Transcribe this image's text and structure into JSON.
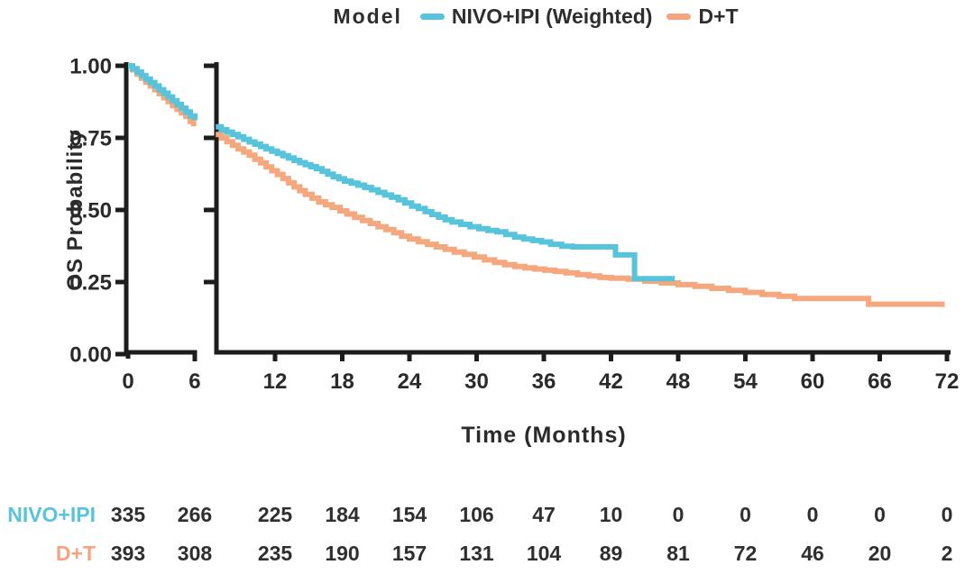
{
  "legend": {
    "title": "Model",
    "items": [
      {
        "label": "NIVO+IPI (Weighted)",
        "color": "#58C4DC"
      },
      {
        "label": "D+T",
        "color": "#F4A47E"
      }
    ]
  },
  "chart_data": {
    "type": "line",
    "subtype": "kaplan-meier-step",
    "title": "",
    "xlabel": "Time (Months)",
    "ylabel": "OS Probability",
    "x_ticks": [
      0,
      6,
      12,
      18,
      24,
      30,
      36,
      42,
      48,
      54,
      60,
      66,
      72
    ],
    "y_tick_labels": [
      "1.00",
      "0.75",
      "0.50",
      "0.25",
      "0.00"
    ],
    "ylim": [
      0,
      1
    ],
    "xlim": [
      0,
      72
    ],
    "axis_break": {
      "after_month": 6,
      "resume_month": 6.7
    },
    "grid": false,
    "legend_position": "top-center",
    "axis_color": "#1d1d1d",
    "series": [
      {
        "name": "NIVO+IPI (Weighted)",
        "color": "#58C4DC",
        "points": [
          [
            0,
            1.0
          ],
          [
            0.4,
            0.99
          ],
          [
            0.8,
            0.978
          ],
          [
            1.2,
            0.966
          ],
          [
            1.6,
            0.954
          ],
          [
            2,
            0.942
          ],
          [
            2.4,
            0.93
          ],
          [
            2.8,
            0.917
          ],
          [
            3.2,
            0.905
          ],
          [
            3.6,
            0.892
          ],
          [
            4,
            0.879
          ],
          [
            4.4,
            0.866
          ],
          [
            4.8,
            0.853
          ],
          [
            5.2,
            0.84
          ],
          [
            5.6,
            0.826
          ],
          [
            6,
            0.812
          ],
          [
            6.7,
            0.788
          ],
          [
            7.2,
            0.778
          ],
          [
            7.7,
            0.77
          ],
          [
            8.2,
            0.762
          ],
          [
            8.7,
            0.754
          ],
          [
            9.2,
            0.745
          ],
          [
            9.7,
            0.736
          ],
          [
            10.2,
            0.728
          ],
          [
            10.7,
            0.72
          ],
          [
            11.2,
            0.712
          ],
          [
            11.7,
            0.704
          ],
          [
            12.2,
            0.696
          ],
          [
            12.7,
            0.688
          ],
          [
            13.2,
            0.68
          ],
          [
            13.7,
            0.672
          ],
          [
            14.2,
            0.664
          ],
          [
            14.7,
            0.657
          ],
          [
            15.2,
            0.65
          ],
          [
            15.7,
            0.643
          ],
          [
            16.2,
            0.634
          ],
          [
            16.7,
            0.624
          ],
          [
            17.2,
            0.615
          ],
          [
            17.7,
            0.608
          ],
          [
            18.2,
            0.6
          ],
          [
            18.8,
            0.593
          ],
          [
            19.4,
            0.586
          ],
          [
            20,
            0.578
          ],
          [
            20.6,
            0.57
          ],
          [
            21.2,
            0.561
          ],
          [
            21.8,
            0.552
          ],
          [
            22.4,
            0.544
          ],
          [
            23,
            0.535
          ],
          [
            23.6,
            0.524
          ],
          [
            24.2,
            0.513
          ],
          [
            24.8,
            0.505
          ],
          [
            25.4,
            0.494
          ],
          [
            26,
            0.484
          ],
          [
            26.6,
            0.475
          ],
          [
            27.2,
            0.466
          ],
          [
            27.8,
            0.458
          ],
          [
            28.6,
            0.45
          ],
          [
            29.4,
            0.442
          ],
          [
            30.2,
            0.435
          ],
          [
            31,
            0.429
          ],
          [
            31.8,
            0.424
          ],
          [
            32.6,
            0.415
          ],
          [
            33.4,
            0.406
          ],
          [
            34.2,
            0.399
          ],
          [
            35,
            0.394
          ],
          [
            35.8,
            0.389
          ],
          [
            36.6,
            0.381
          ],
          [
            37.6,
            0.374
          ],
          [
            38.6,
            0.372
          ],
          [
            42.4,
            0.344
          ],
          [
            44.1,
            0.262
          ],
          [
            47.7,
            0.262
          ]
        ]
      },
      {
        "name": "D+T",
        "color": "#F5A77E",
        "points": [
          [
            0,
            1.0
          ],
          [
            0.4,
            0.986
          ],
          [
            0.8,
            0.971
          ],
          [
            1.2,
            0.957
          ],
          [
            1.6,
            0.943
          ],
          [
            2,
            0.93
          ],
          [
            2.4,
            0.917
          ],
          [
            2.8,
            0.903
          ],
          [
            3.2,
            0.889
          ],
          [
            3.6,
            0.876
          ],
          [
            4,
            0.862
          ],
          [
            4.4,
            0.849
          ],
          [
            4.8,
            0.837
          ],
          [
            5.2,
            0.824
          ],
          [
            5.6,
            0.807
          ],
          [
            5.9,
            0.79
          ],
          [
            6.7,
            0.762
          ],
          [
            7.2,
            0.75
          ],
          [
            7.7,
            0.737
          ],
          [
            8.2,
            0.724
          ],
          [
            8.7,
            0.712
          ],
          [
            9.2,
            0.701
          ],
          [
            9.7,
            0.69
          ],
          [
            10.2,
            0.676
          ],
          [
            10.7,
            0.663
          ],
          [
            11.2,
            0.649
          ],
          [
            11.7,
            0.636
          ],
          [
            12.2,
            0.623
          ],
          [
            12.7,
            0.609
          ],
          [
            13.2,
            0.594
          ],
          [
            13.7,
            0.58
          ],
          [
            14.2,
            0.567
          ],
          [
            14.7,
            0.554
          ],
          [
            15.3,
            0.541
          ],
          [
            15.9,
            0.528
          ],
          [
            16.5,
            0.518
          ],
          [
            17.1,
            0.509
          ],
          [
            17.8,
            0.497
          ],
          [
            18.4,
            0.486
          ],
          [
            19.1,
            0.474
          ],
          [
            19.8,
            0.463
          ],
          [
            20.5,
            0.453
          ],
          [
            21.2,
            0.442
          ],
          [
            21.9,
            0.432
          ],
          [
            22.6,
            0.421
          ],
          [
            23.3,
            0.409
          ],
          [
            24,
            0.399
          ],
          [
            24.8,
            0.39
          ],
          [
            25.6,
            0.381
          ],
          [
            26.4,
            0.372
          ],
          [
            27.2,
            0.363
          ],
          [
            28,
            0.354
          ],
          [
            28.9,
            0.346
          ],
          [
            29.8,
            0.337
          ],
          [
            30.7,
            0.327
          ],
          [
            31.6,
            0.318
          ],
          [
            32.5,
            0.31
          ],
          [
            33.4,
            0.304
          ],
          [
            34.3,
            0.299
          ],
          [
            35.2,
            0.295
          ],
          [
            36.1,
            0.291
          ],
          [
            37,
            0.287
          ],
          [
            38,
            0.282
          ],
          [
            39,
            0.276
          ],
          [
            40,
            0.271
          ],
          [
            41,
            0.266
          ],
          [
            42,
            0.263
          ],
          [
            43.5,
            0.26
          ],
          [
            45,
            0.253
          ],
          [
            46.5,
            0.247
          ],
          [
            48,
            0.241
          ],
          [
            49.5,
            0.235
          ],
          [
            51,
            0.228
          ],
          [
            52.5,
            0.221
          ],
          [
            54,
            0.214
          ],
          [
            55.5,
            0.207
          ],
          [
            57,
            0.201
          ],
          [
            58.4,
            0.193
          ],
          [
            65,
            0.173
          ],
          [
            71.8,
            0.173
          ]
        ]
      }
    ],
    "risk_table": {
      "rows": [
        {
          "label": "NIVO+IPI",
          "color": "#58C4DC",
          "values": [
            335,
            266,
            225,
            184,
            154,
            106,
            47,
            10,
            0,
            0,
            0,
            0,
            0
          ]
        },
        {
          "label": "D+T",
          "color": "#F4A47E",
          "values": [
            393,
            308,
            235,
            190,
            157,
            131,
            104,
            89,
            81,
            72,
            46,
            20,
            2
          ]
        }
      ]
    }
  }
}
